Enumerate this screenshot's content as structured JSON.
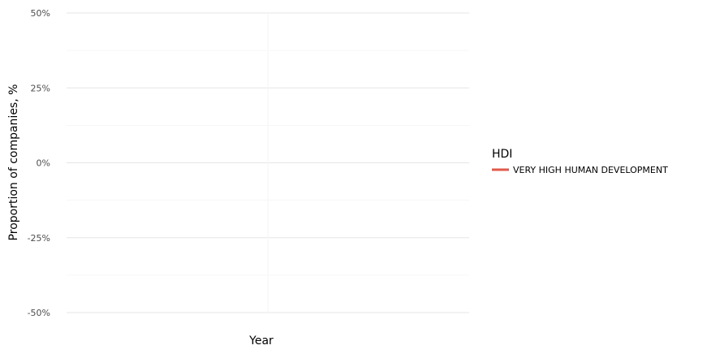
{
  "chart_data": {
    "type": "line",
    "title": "",
    "xlabel": "Year",
    "ylabel": "Proportion of companies, %",
    "ylim": [
      -50,
      50
    ],
    "y_ticks": [
      50,
      25,
      0,
      -25,
      -50
    ],
    "y_tick_labels": [
      "50%",
      "25%",
      "0%",
      "-25%",
      "-50%"
    ],
    "x": [],
    "grid": true,
    "legend_position": "right",
    "legend": {
      "title": "HDI",
      "entries": [
        {
          "name": "VERY HIGH HUMAN DEVELOPMENT",
          "color": "#e15a4b"
        }
      ]
    },
    "series": [
      {
        "name": "VERY HIGH HUMAN DEVELOPMENT",
        "color": "#e15a4b",
        "values": []
      }
    ]
  }
}
